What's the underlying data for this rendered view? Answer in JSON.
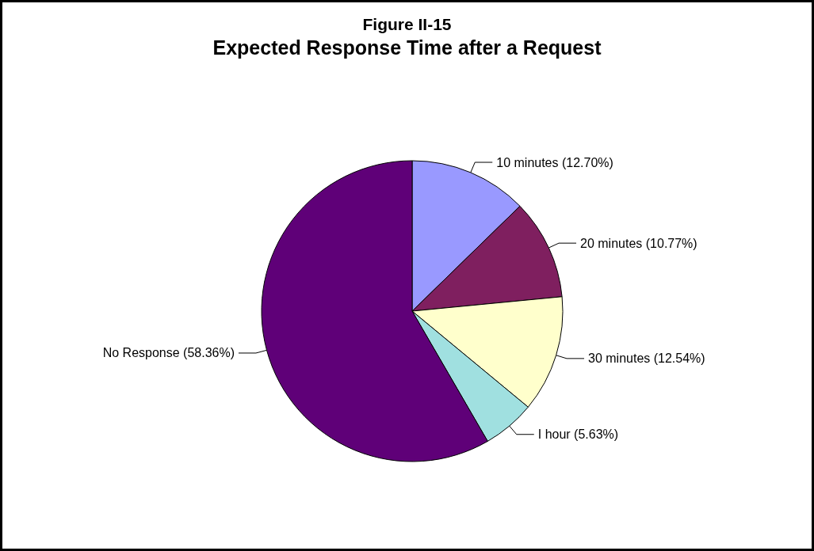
{
  "chart_data": {
    "type": "pie",
    "title": "Figure II-15",
    "subtitle": "Expected Response Time after a Request",
    "categories": [
      "10 minutes",
      "20 minutes",
      "30 minutes",
      "I hour",
      "No Response"
    ],
    "values": [
      12.7,
      10.77,
      12.54,
      5.63,
      58.36
    ],
    "value_labels": [
      "(12.70%)",
      "(10.77%)",
      "(12.54%)",
      "(5.63%)",
      "(58.36%)"
    ],
    "colors": [
      "#9999ff",
      "#7f1f5f",
      "#ffffcc",
      "#a0e0e0",
      "#5f0078"
    ],
    "legend": false
  }
}
